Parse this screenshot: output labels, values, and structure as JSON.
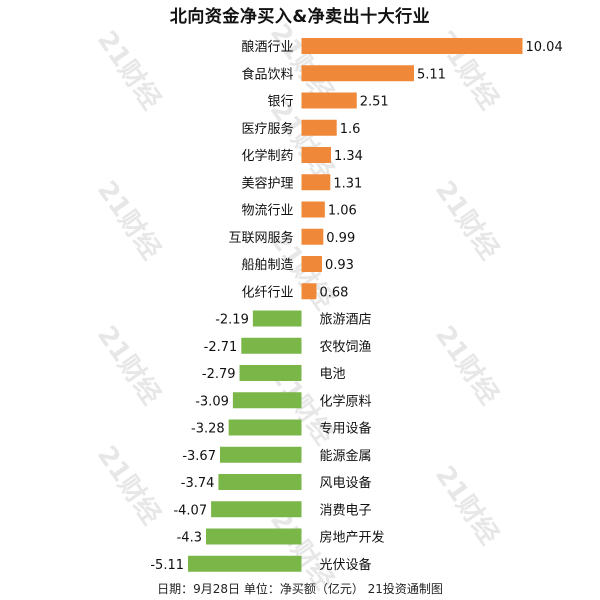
{
  "chart_data": {
    "type": "bar",
    "orientation": "horizontal",
    "title": "北向资金净买入&净卖出十大行业",
    "footer": "日期：9月28日 单位：净买额（亿元） 21投资通制图",
    "watermark": "21财经",
    "colors": {
      "positive": "#F0883A",
      "negative": "#7AB648"
    },
    "categories": [
      "酿酒行业",
      "食品饮料",
      "银行",
      "医疗服务",
      "化学制药",
      "美容护理",
      "物流行业",
      "互联网服务",
      "船舶制造",
      "化纤行业",
      "旅游酒店",
      "农牧饲渔",
      "电池",
      "化学原料",
      "专用设备",
      "能源金属",
      "风电设备",
      "消费电子",
      "房地产开发",
      "光伏设备"
    ],
    "values": [
      10.04,
      5.11,
      2.51,
      1.6,
      1.34,
      1.31,
      1.06,
      0.99,
      0.93,
      0.68,
      -2.19,
      -2.71,
      -2.79,
      -3.09,
      -3.28,
      -3.67,
      -3.74,
      -4.07,
      -4.3,
      -5.11
    ],
    "value_labels": [
      "10.04",
      "5.11",
      "2.51",
      "1.6",
      "1.34",
      "1.31",
      "1.06",
      "0.99",
      "0.93",
      "0.68",
      "-2.19",
      "-2.71",
      "-2.79",
      "-3.09",
      "-3.28",
      "-3.67",
      "-3.74",
      "-4.07",
      "-4.3",
      "-5.11"
    ]
  }
}
